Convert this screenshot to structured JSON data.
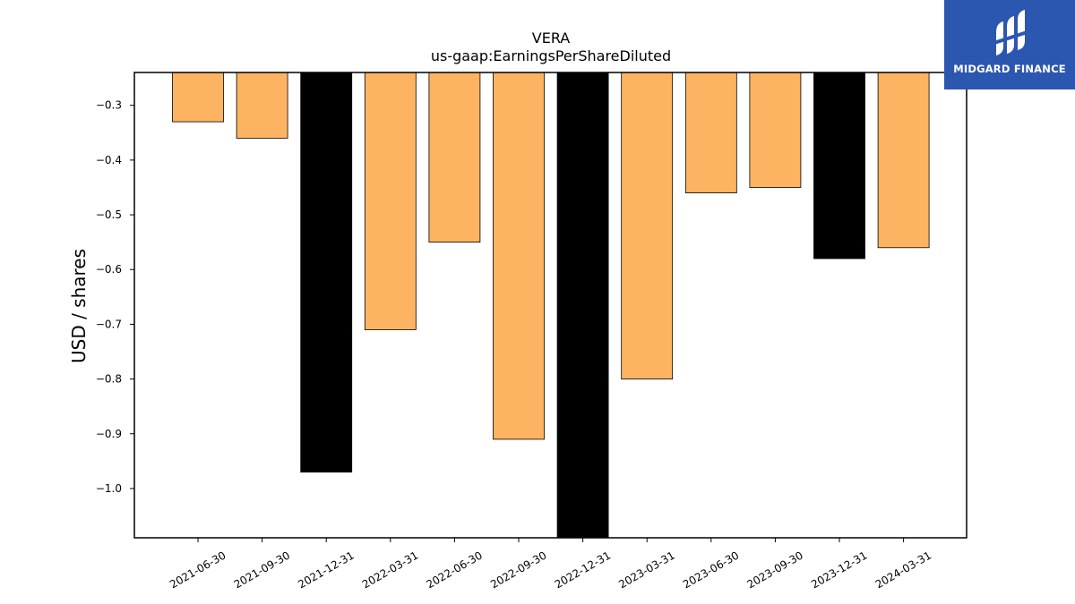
{
  "chart_data": {
    "type": "bar",
    "title": "VERA",
    "subtitle": "us-gaap:EarningsPerShareDiluted",
    "xlabel": "",
    "ylabel": "USD / shares",
    "categories": [
      "2021-06-30",
      "2021-09-30",
      "2021-12-31",
      "2022-03-31",
      "2022-06-30",
      "2022-09-30",
      "2022-12-31",
      "2023-03-31",
      "2023-06-30",
      "2023-09-30",
      "2023-12-31",
      "2024-03-31"
    ],
    "values": [
      -0.33,
      -0.36,
      -0.97,
      -0.71,
      -0.55,
      -0.91,
      -1.09,
      -0.8,
      -0.46,
      -0.45,
      -0.58,
      -0.56
    ],
    "bar_colors": [
      "#fdb462",
      "#fdb462",
      "#000000",
      "#fdb462",
      "#fdb462",
      "#fdb462",
      "#000000",
      "#fdb462",
      "#fdb462",
      "#fdb462",
      "#000000",
      "#fdb462"
    ],
    "ylim": [
      -1.09,
      -0.24
    ],
    "yticks": [
      -0.3,
      -0.4,
      -0.5,
      -0.6,
      -0.7,
      -0.8,
      -0.9,
      -1.0
    ],
    "ytick_labels": [
      "−0.3",
      "−0.4",
      "−0.5",
      "−0.6",
      "−0.7",
      "−0.8",
      "−0.9",
      "−1.0"
    ],
    "grid": false,
    "legend": "none"
  },
  "logo": {
    "text": "MIDGARD FINANCE",
    "background": "#2c57b0",
    "icon": "midgard-mark-icon"
  }
}
